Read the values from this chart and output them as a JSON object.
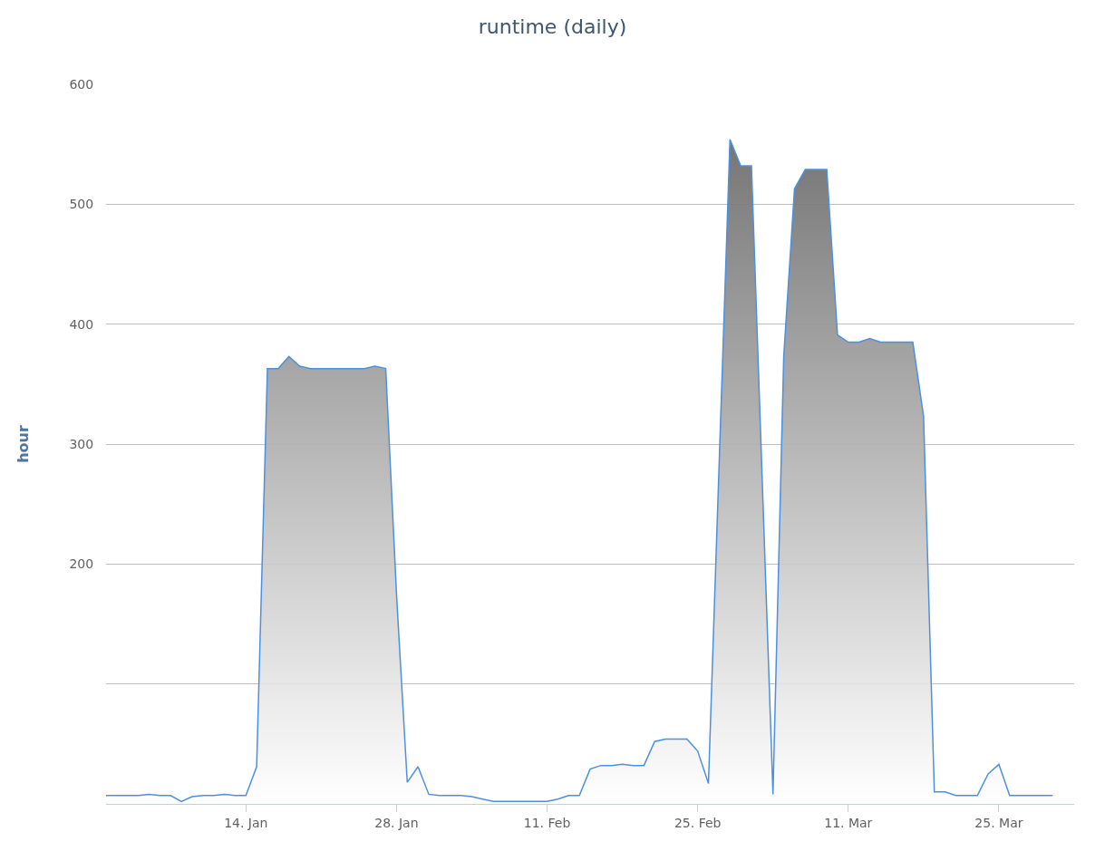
{
  "chart_data": {
    "type": "area",
    "title": "runtime (daily)",
    "ylabel": "hour",
    "x": [
      "--01-01",
      "--01-02",
      "--01-03",
      "--01-04",
      "--01-05",
      "--01-06",
      "--01-07",
      "--01-08",
      "--01-09",
      "--01-10",
      "--01-11",
      "--01-12",
      "--01-13",
      "--01-14",
      "--01-15",
      "--01-16",
      "--01-17",
      "--01-18",
      "--01-19",
      "--01-20",
      "--01-21",
      "--01-22",
      "--01-23",
      "--01-24",
      "--01-25",
      "--01-26",
      "--01-27",
      "--01-28",
      "--01-29",
      "--01-30",
      "--01-31",
      "--02-01",
      "--02-02",
      "--02-03",
      "--02-04",
      "--02-05",
      "--02-06",
      "--02-07",
      "--02-08",
      "--02-09",
      "--02-10",
      "--02-11",
      "--02-12",
      "--02-13",
      "--02-14",
      "--02-15",
      "--02-16",
      "--02-17",
      "--02-18",
      "--02-19",
      "--02-20",
      "--02-21",
      "--02-22",
      "--02-23",
      "--02-24",
      "--02-25",
      "--02-26",
      "--02-27",
      "--02-28",
      "--03-01",
      "--03-02",
      "--03-03",
      "--03-04",
      "--03-05",
      "--03-06",
      "--03-07",
      "--03-08",
      "--03-09",
      "--03-10",
      "--03-11",
      "--03-12",
      "--03-13",
      "--03-14",
      "--03-15",
      "--03-16",
      "--03-17",
      "--03-18",
      "--03-19",
      "--03-20",
      "--03-21",
      "--03-22",
      "--03-23",
      "--03-24",
      "--03-25",
      "--03-26",
      "--03-27",
      "--03-28",
      "--03-29",
      "--03-30"
    ],
    "series": [
      {
        "color": "#4d90e0",
        "values": [
          7,
          7,
          7,
          7,
          8,
          7,
          7,
          2,
          6,
          7,
          7,
          8,
          7,
          7,
          31,
          363,
          363,
          373,
          365,
          363,
          363,
          363,
          363,
          363,
          363,
          365,
          363,
          175,
          18,
          31,
          8,
          7,
          7,
          7,
          6,
          4,
          2,
          2,
          2,
          2,
          2,
          2,
          4,
          7,
          7,
          29,
          32,
          32,
          33,
          32,
          32,
          52,
          54,
          54,
          54,
          44,
          17,
          285,
          554,
          532,
          532,
          270,
          8,
          373,
          513,
          529,
          529,
          529,
          391,
          385,
          385,
          388,
          385,
          385,
          385,
          385,
          323,
          10,
          10,
          7,
          7,
          7,
          25,
          33,
          7,
          7,
          7,
          7,
          7
        ]
      }
    ],
    "xlim": [
      "--01-01",
      "--04-01"
    ],
    "xticks": [
      {
        "value": "--01-14",
        "label": "14. Jan"
      },
      {
        "value": "--01-28",
        "label": "28. Jan"
      },
      {
        "value": "--02-11",
        "label": "11. Feb"
      },
      {
        "value": "--02-25",
        "label": "25. Feb"
      },
      {
        "value": "--03-11",
        "label": "11. Mar"
      },
      {
        "value": "--03-25",
        "label": "25. Mar"
      }
    ],
    "ylim": [
      0,
      600
    ],
    "yticks": [
      {
        "value": 100,
        "label": null
      },
      200,
      300,
      400,
      500,
      600
    ],
    "grid": "y",
    "marker": "none",
    "line_style": "solid"
  }
}
